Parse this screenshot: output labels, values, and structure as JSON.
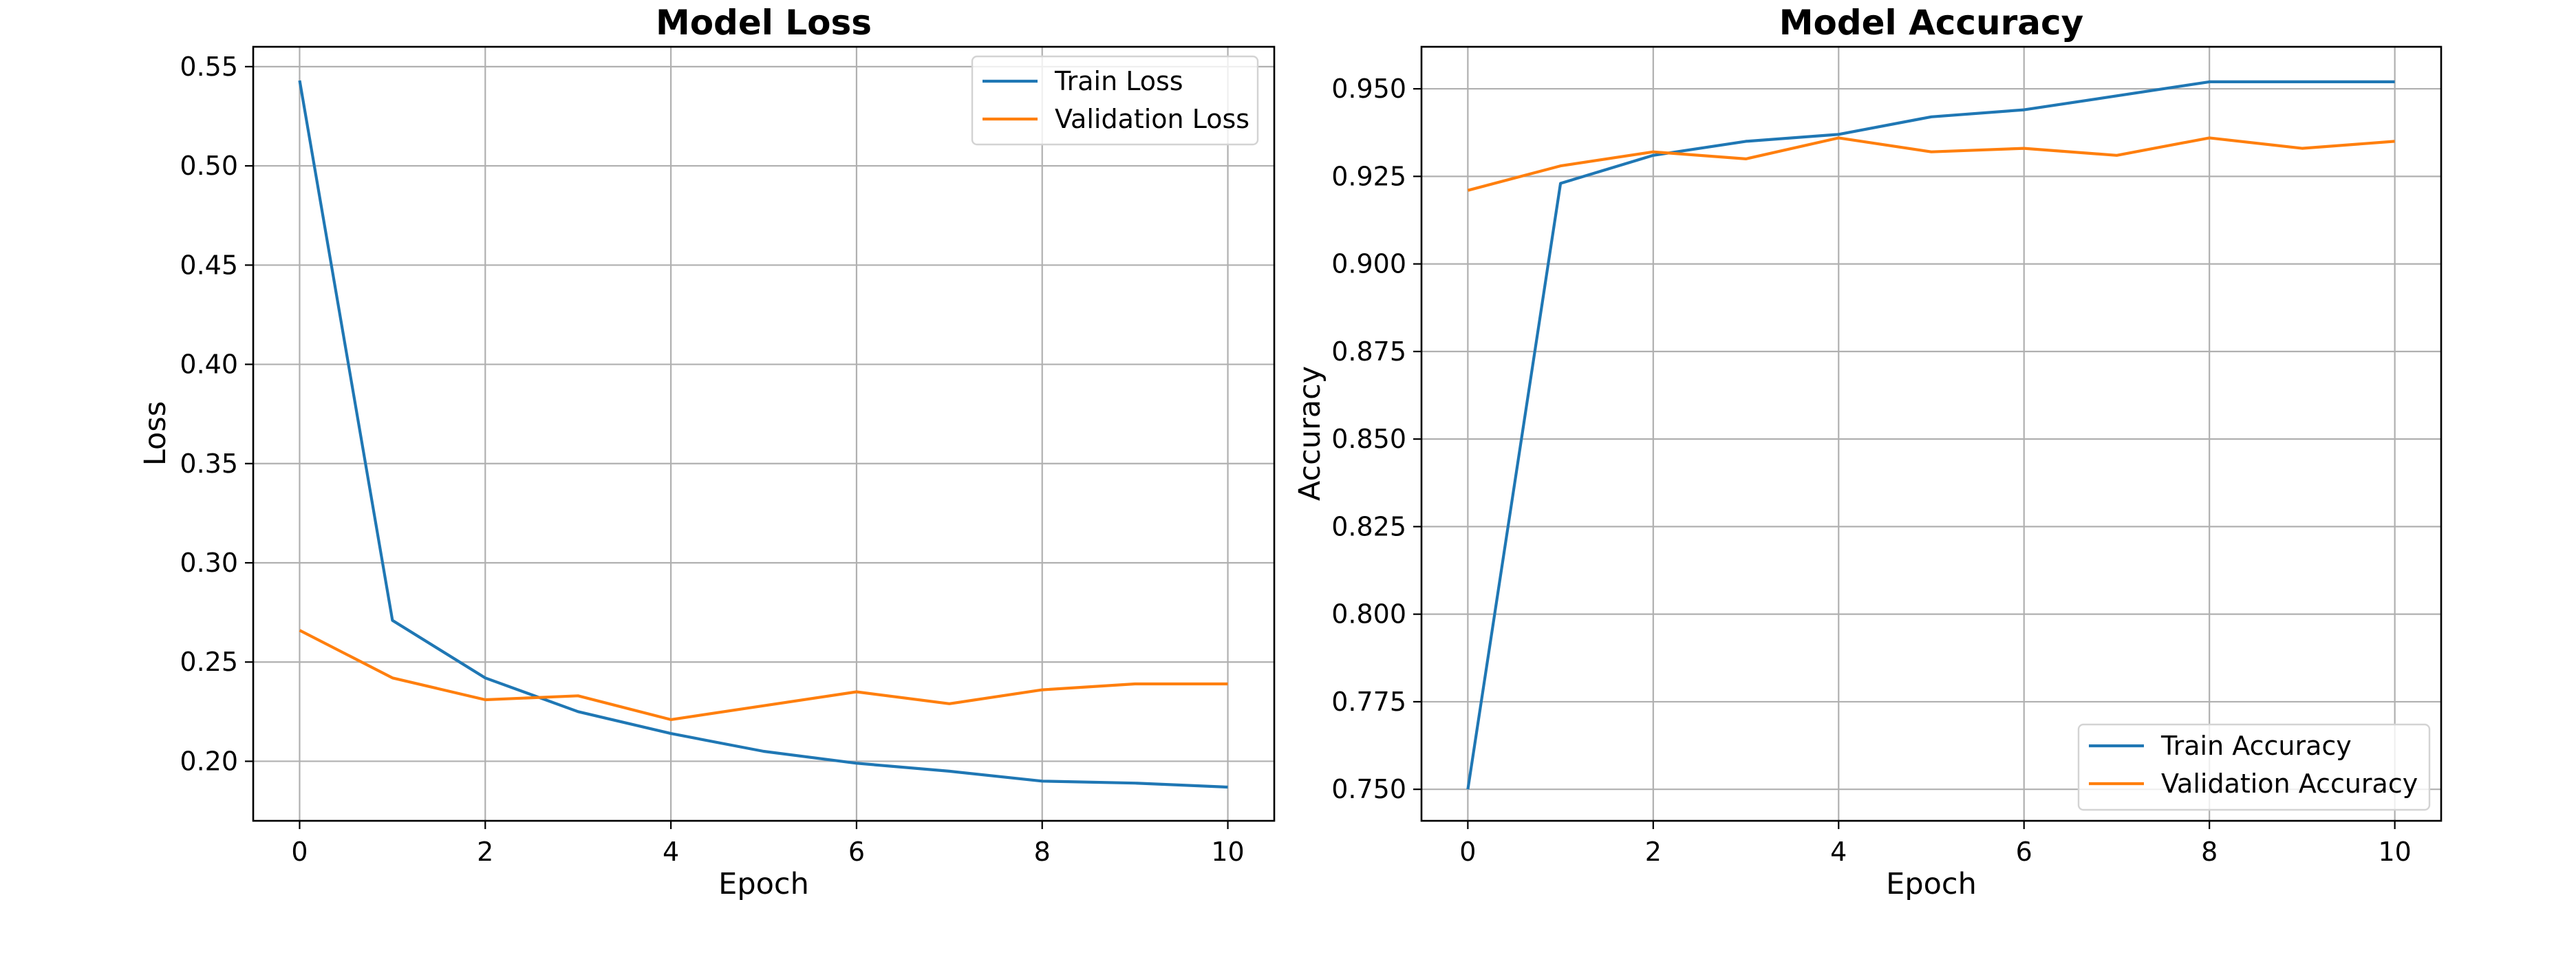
{
  "chart_data": [
    {
      "type": "line",
      "title": "Model Loss",
      "xlabel": "Epoch",
      "ylabel": "Loss",
      "xlim": [
        -0.5,
        10.5
      ],
      "ylim": [
        0.17,
        0.56
      ],
      "xticks": [
        0,
        2,
        4,
        6,
        8,
        10
      ],
      "xtick_labels": [
        "0",
        "2",
        "4",
        "6",
        "8",
        "10"
      ],
      "yticks": [
        0.2,
        0.25,
        0.3,
        0.35,
        0.4,
        0.45,
        0.5,
        0.55
      ],
      "ytick_labels": [
        "0.20",
        "0.25",
        "0.30",
        "0.35",
        "0.40",
        "0.45",
        "0.50",
        "0.55"
      ],
      "grid": true,
      "legend_position": "upper right",
      "x": [
        0,
        1,
        2,
        3,
        4,
        5,
        6,
        7,
        8,
        9,
        10
      ],
      "series": [
        {
          "name": "Train Loss",
          "color": "#1f77b4",
          "values": [
            0.543,
            0.271,
            0.242,
            0.225,
            0.214,
            0.205,
            0.199,
            0.195,
            0.19,
            0.189,
            0.187
          ]
        },
        {
          "name": "Validation Loss",
          "color": "#ff7f0e",
          "values": [
            0.266,
            0.242,
            0.231,
            0.233,
            0.221,
            0.228,
            0.235,
            0.229,
            0.236,
            0.239,
            0.239
          ]
        }
      ]
    },
    {
      "type": "line",
      "title": "Model Accuracy",
      "xlabel": "Epoch",
      "ylabel": "Accuracy",
      "xlim": [
        -0.5,
        10.5
      ],
      "ylim": [
        0.741,
        0.962
      ],
      "xticks": [
        0,
        2,
        4,
        6,
        8,
        10
      ],
      "xtick_labels": [
        "0",
        "2",
        "4",
        "6",
        "8",
        "10"
      ],
      "yticks": [
        0.75,
        0.775,
        0.8,
        0.825,
        0.85,
        0.875,
        0.9,
        0.925,
        0.95
      ],
      "ytick_labels": [
        "0.750",
        "0.775",
        "0.800",
        "0.825",
        "0.850",
        "0.875",
        "0.900",
        "0.925",
        "0.950"
      ],
      "grid": true,
      "legend_position": "lower right",
      "x": [
        0,
        1,
        2,
        3,
        4,
        5,
        6,
        7,
        8,
        9,
        10
      ],
      "series": [
        {
          "name": "Train Accuracy",
          "color": "#1f77b4",
          "values": [
            0.75,
            0.923,
            0.931,
            0.935,
            0.937,
            0.942,
            0.944,
            0.948,
            0.952,
            0.952,
            0.952
          ]
        },
        {
          "name": "Validation Accuracy",
          "color": "#ff7f0e",
          "values": [
            0.921,
            0.928,
            0.932,
            0.93,
            0.936,
            0.932,
            0.933,
            0.931,
            0.936,
            0.933,
            0.935
          ]
        }
      ]
    }
  ]
}
